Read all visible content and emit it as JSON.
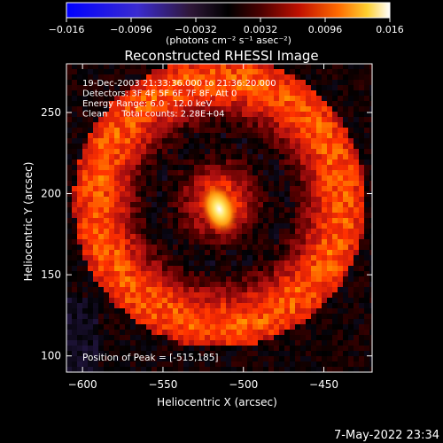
{
  "colorbar": {
    "ticks": [
      "−0.016",
      "−0.0096",
      "−0.0032",
      "0.0032",
      "0.0096",
      "0.016"
    ],
    "units_label": "(photons cm⁻² s⁻¹ asec⁻²)",
    "range": [
      -0.016,
      0.016
    ]
  },
  "chart_data": {
    "type": "heatmap",
    "title": "Reconstructed RHESSI Image",
    "xlabel": "Heliocentric X (arcsec)",
    "ylabel": "Heliocentric Y (arcsec)",
    "xlim": [
      -610,
      -420
    ],
    "ylim": [
      90,
      280
    ],
    "x_ticks": [
      -600,
      -550,
      -500,
      -450
    ],
    "y_ticks": [
      100,
      150,
      200,
      250
    ],
    "x_tick_labels": [
      "−600",
      "−550",
      "−500",
      "−450"
    ],
    "y_tick_labels": [
      "100",
      "150",
      "200",
      "250"
    ],
    "peak_position": [
      -515,
      185
    ],
    "peak_value": 0.016,
    "annotations": [
      "19-Dec-2003 21:33:36.000 to 21:36:20.000",
      "Detectors: 3F 4F 5F 6F 7F 8F, Att 0",
      "Energy Range: 6.0 - 12.0 keV",
      "Clean     Total counts: 2.28E+04"
    ],
    "peak_label": "Position of Peak = [-515,185]",
    "colormap": [
      "#1a1aff",
      "#3a2bb0",
      "#2a1a50",
      "#000000",
      "#5a0000",
      "#b01010",
      "#ff3000",
      "#ff9a00",
      "#ffe040",
      "#ffffff"
    ]
  },
  "footer_timestamp": "7-May-2022 23:34"
}
